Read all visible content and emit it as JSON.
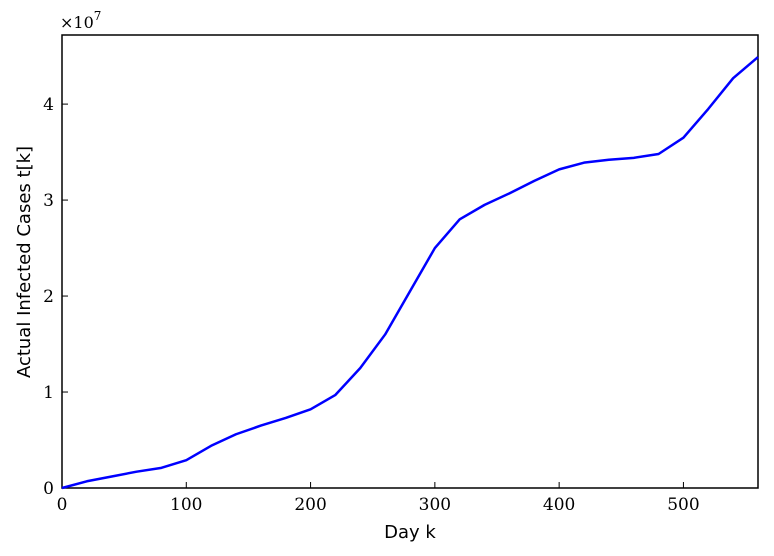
{
  "chart_data": {
    "type": "line",
    "xlabel": "Day k",
    "ylabel": "Actual Infected Cases t[k]",
    "y_offset": {
      "base": "×10",
      "exponent": "7"
    },
    "x": [
      0,
      20,
      40,
      60,
      80,
      100,
      120,
      140,
      160,
      180,
      200,
      220,
      240,
      260,
      280,
      300,
      320,
      340,
      360,
      380,
      400,
      420,
      440,
      460,
      480,
      500,
      520,
      540,
      560
    ],
    "series": [
      {
        "color": "#0000ff",
        "values": [
          0,
          0.07,
          0.12,
          0.17,
          0.21,
          0.29,
          0.44,
          0.56,
          0.65,
          0.73,
          0.82,
          0.97,
          1.25,
          1.6,
          2.05,
          2.5,
          2.8,
          2.95,
          3.07,
          3.2,
          3.32,
          3.39,
          3.42,
          3.44,
          3.48,
          3.65,
          3.95,
          4.27,
          4.49
        ]
      }
    ],
    "xlim": [
      0,
      560
    ],
    "ylim": [
      0,
      4.72
    ],
    "xticks": [
      0,
      100,
      200,
      300,
      400,
      500
    ],
    "yticks": [
      0,
      1,
      2,
      3,
      4
    ]
  }
}
